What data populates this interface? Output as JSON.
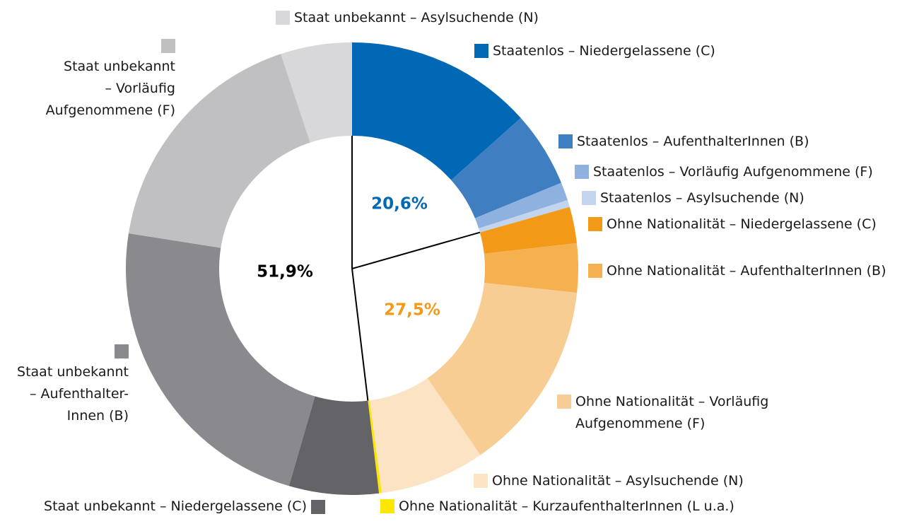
{
  "chart_data": {
    "type": "donut",
    "categories": [
      "Staatenlos – Niedergelassene (C)",
      "Staatenlos – AufenthalterInnen (B)",
      "Staatenlos – Vorläufig Aufgenommene (F)",
      "Staatenlos – Asylsuchende (N)",
      "Ohne Nationalität – Niedergelassene (C)",
      "Ohne Nationalität – AufenthalterInnen (B)",
      "Ohne Nationalität – Vorläufig\nAufgenommene (F)",
      "Ohne Nationalität – Asylsuchende (N)",
      "Ohne Nationalität – KurzaufenthalterInnen (L u.a.)",
      "Staat unbekannt – Niedergelassene (C)",
      "Staat unbekannt\n– Aufenthalter-\nInnen (B)",
      "Staat unbekannt\n– Vorläufig\nAufgenommene (F)",
      "Staat unbekannt – Asylsuchende (N)"
    ],
    "values": [
      13.4,
      5.4,
      1.3,
      0.5,
      2.6,
      3.5,
      13.7,
      7.5,
      0.2,
      6.4,
      23.0,
      17.4,
      5.1
    ],
    "colors": [
      "#0068b4",
      "#3f7fc1",
      "#8fb1e0",
      "#c3d5ee",
      "#f29a17",
      "#f5b050",
      "#f8cd93",
      "#fbe3c3",
      "#ffe600",
      "#646368",
      "#8a898e",
      "#c0c0c3",
      "#d8d8da"
    ],
    "groups": {
      "values": [
        20.6,
        27.5,
        51.9
      ],
      "value_labels": [
        "20,6%",
        "27,5%",
        "51,9%"
      ],
      "colors": [
        "#0068b4",
        "#f29a17",
        "#000000"
      ]
    }
  }
}
